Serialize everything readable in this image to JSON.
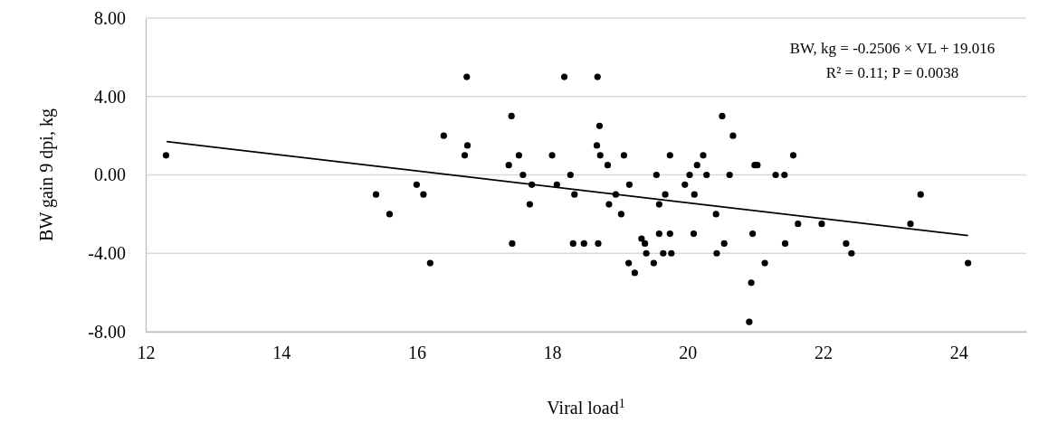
{
  "chart_data": {
    "type": "scatter",
    "xlabel": "Viral load$^{1}$",
    "ylabel": "BW gain 9 dpi, kg",
    "xlim": [
      12,
      25
    ],
    "xticks": [
      12,
      14,
      16,
      18,
      20,
      22,
      24
    ],
    "ylim": [
      -8,
      8
    ],
    "yticks": [
      {
        "value": -8,
        "label": "-8.00"
      },
      {
        "value": -4,
        "label": "-4.00"
      },
      {
        "value": 0,
        "label": "0.00"
      },
      {
        "value": 4,
        "label": "4.00"
      },
      {
        "value": 8,
        "label": "8.00"
      }
    ],
    "grid": "y",
    "annotations": [
      "BW, kg = -0.2506 × VL + 19.016",
      "R² = 0.11; P = 0.0038"
    ],
    "series": [
      {
        "marker": "circle",
        "color": "#000000",
        "x": [
          12.3,
          15.4,
          15.6,
          16.0,
          16.1,
          16.2,
          16.4,
          16.74,
          16.75,
          16.71,
          17.4,
          17.36,
          17.41,
          17.51,
          17.57,
          17.7,
          17.67,
          18.0,
          18.07,
          18.18,
          18.27,
          18.33,
          18.31,
          18.47,
          18.67,
          18.7,
          18.66,
          18.71,
          18.68,
          18.82,
          18.84,
          18.94,
          19.06,
          19.02,
          19.14,
          19.13,
          19.22,
          19.32,
          19.37,
          19.39,
          19.5,
          19.54,
          19.58,
          19.58,
          19.64,
          19.67,
          19.74,
          19.74,
          19.76,
          19.96,
          20.03,
          20.1,
          20.09,
          20.14,
          20.23,
          20.28,
          20.42,
          20.43,
          20.51,
          20.54,
          20.62,
          20.67,
          20.99,
          21.03,
          20.96,
          20.94,
          20.91,
          21.14,
          21.3,
          21.43,
          21.44,
          21.56,
          21.63,
          21.98,
          22.34,
          22.42,
          23.29,
          23.44,
          24.14
        ],
        "values": [
          1,
          -1,
          -2,
          -0.5,
          -1,
          -4.5,
          2,
          5,
          1.5,
          1,
          3,
          0.5,
          -3.5,
          1,
          0,
          -0.5,
          -1.5,
          1,
          -0.5,
          5,
          0,
          -1,
          -3.5,
          -3.5,
          5,
          2.5,
          1.5,
          1,
          -3.5,
          0.5,
          -1.5,
          -1,
          1,
          -2,
          -0.5,
          -4.5,
          -5,
          -3.25,
          -3.5,
          -4,
          -4.5,
          0,
          -1.5,
          -3,
          -4,
          -1,
          1,
          -3,
          -4,
          -0.5,
          0,
          -1,
          -3,
          0.5,
          1,
          0,
          -2,
          -4,
          3,
          -3.5,
          0,
          2,
          0.5,
          0.5,
          -3,
          -5.5,
          -7.5,
          -4.5,
          0,
          0,
          -3.5,
          1,
          -2.5,
          -2.5,
          -3.5,
          -4,
          -2.5,
          -1,
          -4.5
        ]
      },
      {
        "type": "line",
        "color": "#000000",
        "x": [
          12.31,
          24.14
        ],
        "values": [
          1.7,
          -3.1
        ]
      }
    ]
  }
}
